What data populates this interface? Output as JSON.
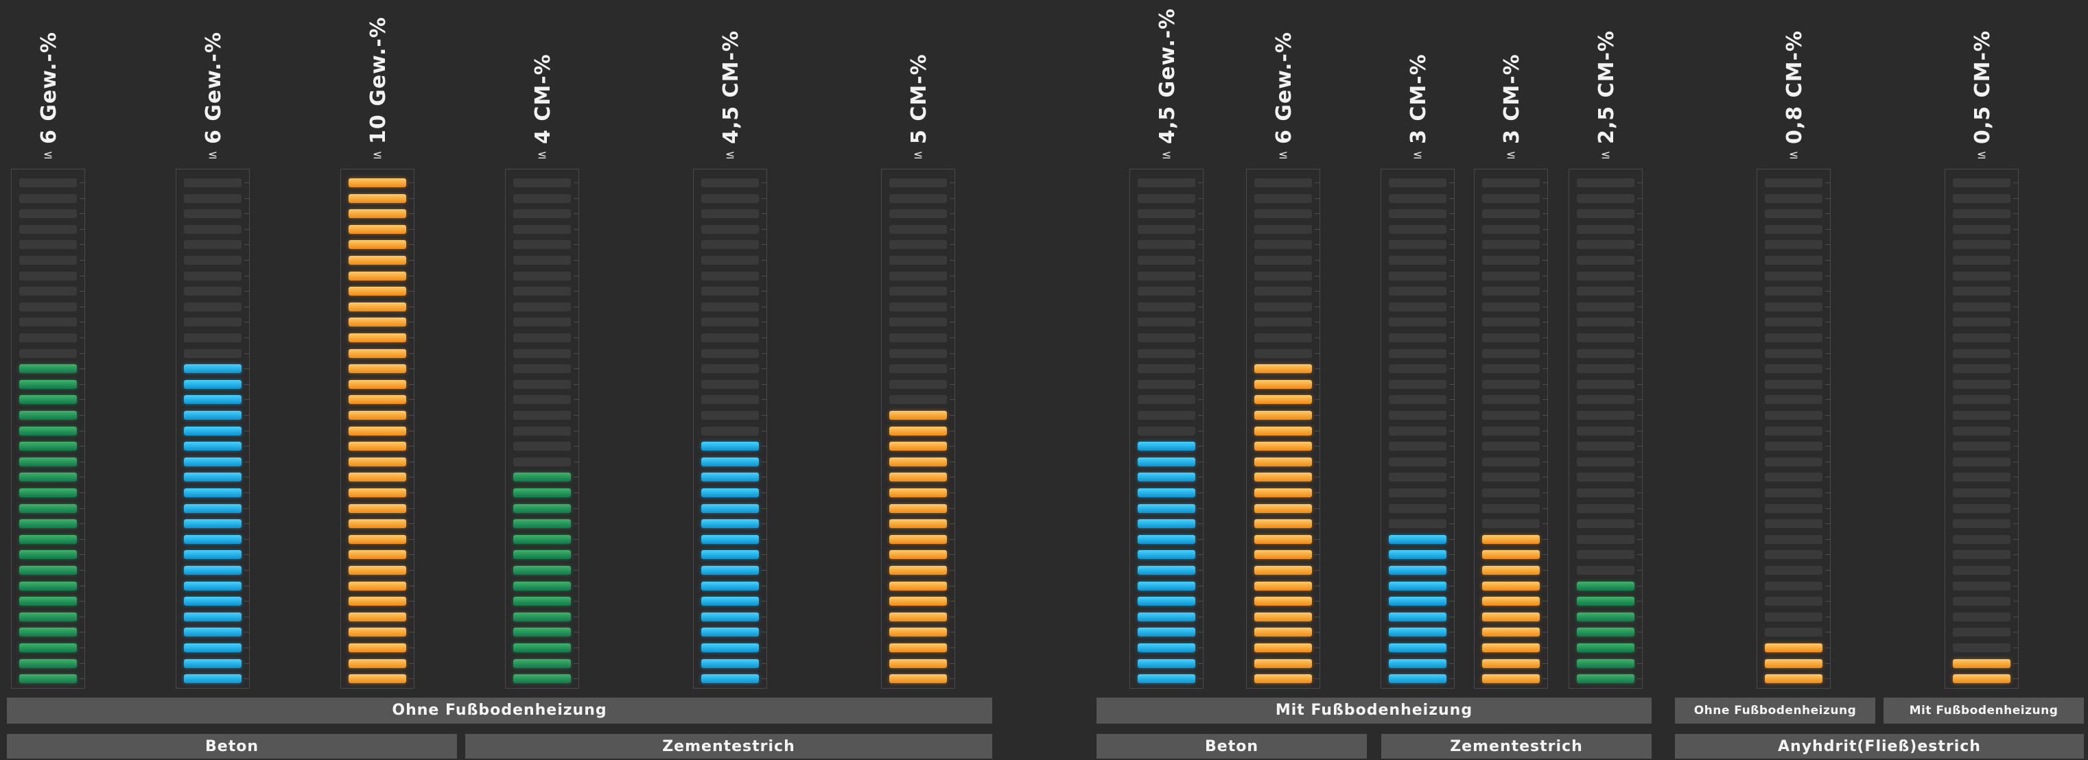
{
  "chart_data": {
    "type": "bar",
    "segments_total": 33,
    "categories": [
      "6 Gew.-%",
      "6 Gew.-%",
      "10 Gew.-%",
      "4 CM-%",
      "4,5 CM-%",
      "5 CM-%",
      "4,5 Gew.-%",
      "6 Gew.-%",
      "3 CM-%",
      "3 CM-%",
      "2,5 CM-%",
      "0,8 CM-%",
      "0,5 CM-%"
    ],
    "prefix": "≤",
    "values": [
      21,
      21,
      33,
      14,
      16,
      18,
      16,
      21,
      10,
      10,
      7,
      3,
      2
    ],
    "colors": [
      "#2aa05a",
      "#1eb4ea",
      "#f9a535",
      "#2aa05a",
      "#1eb4ea",
      "#f9a535",
      "#1eb4ea",
      "#f9a535",
      "#1eb4ea",
      "#f9a535",
      "#2aa05a",
      "#f9a535",
      "#f9a535"
    ],
    "groups_row1": [
      "Ohne Fußbodenheizung",
      "Mit Fußbodenheizung",
      "Ohne Fußbodenheizung",
      "Mit Fußbodenheizung"
    ],
    "groups_row2": [
      "Beton",
      "Zementestrich",
      "Beton",
      "Zementestrich",
      "Anyhdrit(Fließ)estrich"
    ],
    "grid": false
  }
}
